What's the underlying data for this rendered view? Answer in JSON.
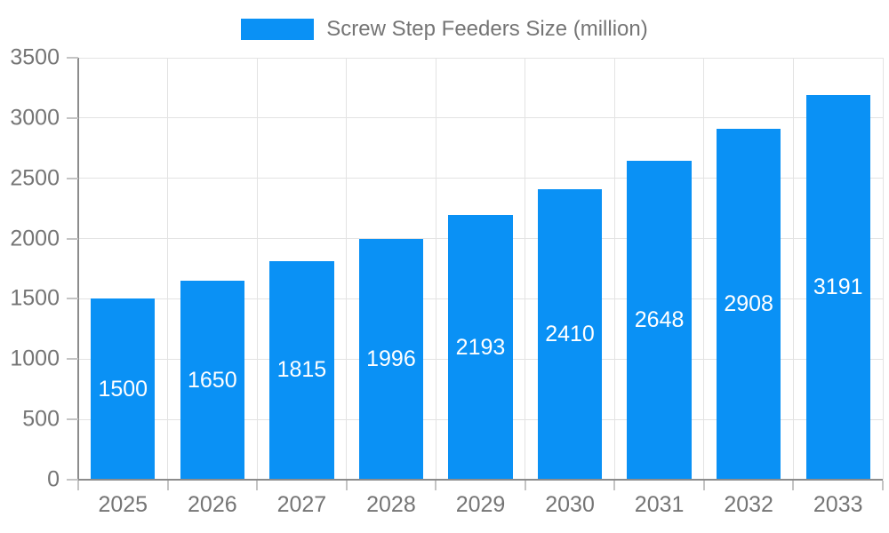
{
  "chart_data": {
    "type": "bar",
    "title": "Screw Step Feeders Size (million)",
    "legend": "Screw Step Feeders Size (million)",
    "legend_position": "top",
    "categories": [
      "2025",
      "2026",
      "2027",
      "2028",
      "2029",
      "2030",
      "2031",
      "2032",
      "2033"
    ],
    "values": [
      1500,
      1650,
      1815,
      1996,
      2193,
      2410,
      2648,
      2908,
      3191
    ],
    "xlabel": "",
    "ylabel": "",
    "ylim": [
      0,
      3500
    ],
    "yticks": [
      0,
      500,
      1000,
      1500,
      2000,
      2500,
      3000,
      3500
    ],
    "grid": true,
    "bar_labels_inside": true
  },
  "colors": {
    "bar": "#0a91f5",
    "grid": "#e3e3e3",
    "axis": "#8c8c8c",
    "tick": "#c4c4c4",
    "tick_text": "#757575",
    "value_text": "#ffffff",
    "background": "#ffffff"
  }
}
